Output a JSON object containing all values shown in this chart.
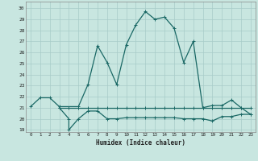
{
  "xlabel": "Humidex (Indice chaleur)",
  "background_color": "#c8e6e0",
  "grid_color": "#a8ccc8",
  "line_color": "#1a6865",
  "xlim": [
    -0.5,
    23.5
  ],
  "ylim": [
    18.8,
    30.6
  ],
  "yticks": [
    19,
    20,
    21,
    22,
    23,
    24,
    25,
    26,
    27,
    28,
    29,
    30
  ],
  "xticks": [
    0,
    1,
    2,
    3,
    4,
    5,
    6,
    7,
    8,
    9,
    10,
    11,
    12,
    13,
    14,
    15,
    16,
    17,
    18,
    19,
    20,
    21,
    22,
    23
  ],
  "line1_x": [
    0,
    1,
    2,
    3,
    5,
    6,
    7,
    8,
    9,
    10,
    11,
    12,
    13,
    14,
    15,
    16,
    17,
    18,
    19,
    20,
    21,
    22,
    23
  ],
  "line1_y": [
    21.1,
    21.9,
    21.9,
    21.1,
    21.1,
    23.1,
    26.6,
    25.1,
    23.1,
    26.7,
    28.5,
    29.7,
    29.0,
    29.2,
    28.2,
    25.1,
    27.0,
    21.0,
    21.2,
    21.2,
    21.7,
    21.0,
    20.4
  ],
  "line2_x": [
    3,
    4,
    4,
    5,
    6,
    7,
    8,
    9,
    10,
    11,
    12,
    13,
    14,
    15,
    16,
    17,
    18,
    19,
    20,
    21,
    22,
    23
  ],
  "line2_y": [
    21.0,
    20.0,
    19.0,
    20.0,
    20.7,
    20.7,
    20.0,
    20.0,
    20.1,
    20.1,
    20.1,
    20.1,
    20.1,
    20.1,
    20.0,
    20.0,
    20.0,
    19.8,
    20.2,
    20.2,
    20.4,
    20.4
  ],
  "line3_x": [
    3,
    4,
    5,
    6,
    7,
    8,
    9,
    10,
    11,
    12,
    13,
    14,
    15,
    16,
    17,
    18,
    19,
    20,
    21,
    22,
    23
  ],
  "line3_y": [
    21.0,
    21.0,
    21.0,
    21.0,
    21.0,
    21.0,
    21.0,
    21.0,
    21.0,
    21.0,
    21.0,
    21.0,
    21.0,
    21.0,
    21.0,
    21.0,
    21.0,
    21.0,
    21.0,
    21.0,
    21.0
  ]
}
